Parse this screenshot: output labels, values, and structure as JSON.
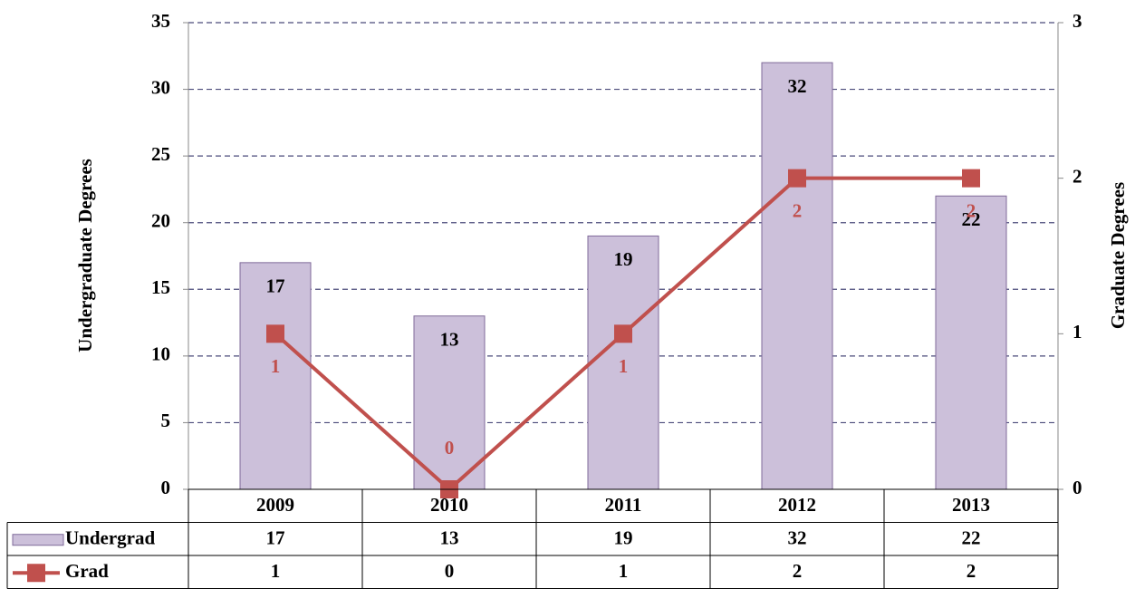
{
  "chart_data": {
    "type": "bar",
    "ylabel": "Undergraduate Degrees",
    "y2label": "Graduate Degrees",
    "categories": [
      "2009",
      "2010",
      "2011",
      "2012",
      "2013"
    ],
    "series": [
      {
        "name": "Undergrad",
        "type": "bar",
        "color": "#ccc0da",
        "values": [
          17,
          13,
          19,
          32,
          22
        ]
      },
      {
        "name": "Grad",
        "type": "line",
        "color": "#c0504d",
        "axis": "y2",
        "values": [
          1,
          0,
          1,
          2,
          2
        ]
      }
    ],
    "ylim": [
      0,
      35
    ],
    "yticks": [
      0,
      5,
      10,
      15,
      20,
      25,
      30,
      35
    ],
    "y2lim": [
      0,
      3
    ],
    "y2ticks": [
      0,
      1,
      2,
      3
    ],
    "grid": true,
    "data_table": true
  }
}
